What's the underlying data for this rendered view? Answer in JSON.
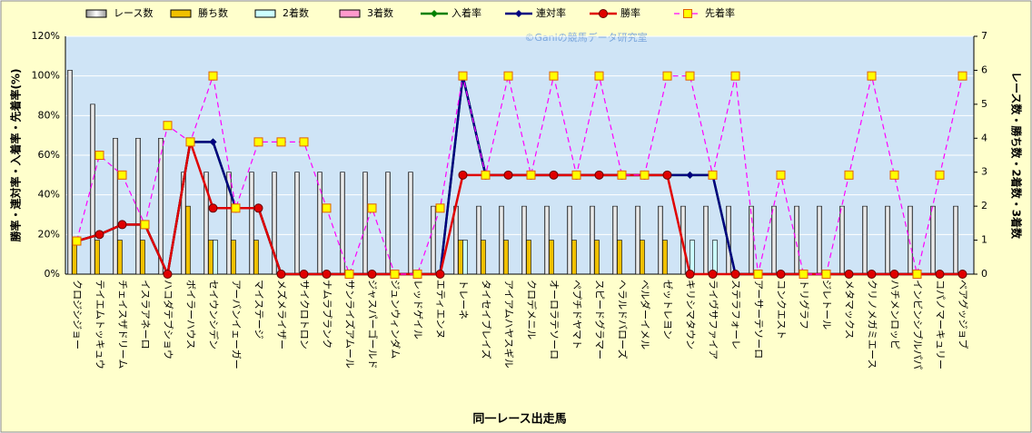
{
  "chart_data": {
    "type": "bar",
    "watermark": "©Ganiの競馬データ研究室",
    "x_label": "同一レース出走馬",
    "y_label": "勝率・連対率・入着率・先着率(%)",
    "y2_label": "レース数・勝ち数・2着数・3着数",
    "categories": [
      "クロジシジョー",
      "テイエムトッキュウ",
      "チェイスザドリーム",
      "イスラアネーロ",
      "ハコダテブショウ",
      "ボイラーハウス",
      "セイウンシデン",
      "アーバンイェーガー",
      "マイステージ",
      "メズメライザー",
      "サイクロトロン",
      "ナムラブランク",
      "サンライズアムール",
      "ジャスパーゴールド",
      "ジュンウィンダム",
      "レッドゲイル",
      "エティエンヌ",
      "トレーネ",
      "タイセイブレイズ",
      "アイアムハヤスギル",
      "クロデメニル",
      "オーロラテソーロ",
      "ペプチドヤマト",
      "スピードグラマー",
      "ヘラルドバローズ",
      "ベルダーイメル",
      "ゼットレヨン",
      "キリシマタウン",
      "ライヴサファイア",
      "ステラフォーレ",
      "アーサーテソーロ",
      "コンクエスト",
      "トリグラフ",
      "ジレトール",
      "メタマックス",
      "クリノメガミエース",
      "ハチメンロッピ",
      "インビンシブルパパ",
      "コパノマーキュリー",
      "ベアグッジョブ"
    ],
    "ylim": [
      0,
      120
    ],
    "yticks": [
      {
        "value": 0,
        "label": "0%"
      },
      {
        "value": 20,
        "label": "20%"
      },
      {
        "value": 40,
        "label": "40%"
      },
      {
        "value": 60,
        "label": "60%"
      },
      {
        "value": 80,
        "label": "80%"
      },
      {
        "value": 100,
        "label": "100%"
      },
      {
        "value": 120,
        "label": "120%"
      }
    ],
    "y2lim": [
      0,
      7
    ],
    "y2ticks": [
      0,
      1,
      2,
      3,
      4,
      5,
      6,
      7
    ],
    "grid": true,
    "series": [
      {
        "name": "レース数",
        "type": "bar",
        "axis": "y2",
        "color": "#ffffff",
        "values": [
          6,
          5,
          4,
          4,
          4,
          3,
          3,
          3,
          3,
          3,
          3,
          3,
          3,
          3,
          3,
          3,
          2,
          2,
          2,
          2,
          2,
          2,
          2,
          2,
          2,
          2,
          2,
          2,
          2,
          2,
          2,
          2,
          2,
          2,
          2,
          2,
          2,
          2,
          2,
          2
        ]
      },
      {
        "name": "勝ち数",
        "type": "bar",
        "axis": "y2",
        "color": "#f0c000",
        "values": [
          1,
          1,
          1,
          1,
          0,
          2,
          1,
          1,
          1,
          0,
          0,
          0,
          0,
          0,
          0,
          0,
          0,
          1,
          1,
          1,
          1,
          1,
          1,
          1,
          1,
          1,
          1,
          0,
          0,
          0,
          0,
          0,
          0,
          0,
          0,
          0,
          0,
          0,
          0,
          0
        ]
      },
      {
        "name": "2着数",
        "type": "bar",
        "axis": "y2",
        "color": "#ccffff",
        "values": [
          0,
          0,
          0,
          0,
          0,
          0,
          1,
          0,
          0,
          0,
          0,
          0,
          0,
          0,
          0,
          0,
          0,
          1,
          0,
          0,
          0,
          0,
          0,
          0,
          0,
          0,
          0,
          1,
          1,
          0,
          0,
          0,
          0,
          0,
          0,
          0,
          0,
          0,
          0,
          0
        ]
      },
      {
        "name": "3着数",
        "type": "bar",
        "axis": "y2",
        "color": "#ff99cc",
        "values": [
          0,
          0,
          0,
          0,
          0,
          0,
          0,
          0,
          0,
          0,
          0,
          0,
          0,
          0,
          0,
          0,
          0,
          0,
          0,
          0,
          0,
          0,
          0,
          0,
          0,
          0,
          0,
          0,
          0,
          0,
          0,
          0,
          0,
          0,
          0,
          0,
          0,
          0,
          0,
          0
        ]
      },
      {
        "name": "入着率",
        "type": "line",
        "color": "#008000",
        "marker": "diamond",
        "dashed": false,
        "values": [
          16.7,
          20,
          25,
          25,
          0,
          66.7,
          66.7,
          33.3,
          33.3,
          0,
          0,
          0,
          0,
          0,
          0,
          0,
          0,
          100,
          50,
          50,
          50,
          50,
          50,
          50,
          50,
          50,
          50,
          50,
          50,
          0,
          0,
          0,
          0,
          0,
          0,
          0,
          0,
          0,
          0,
          0
        ]
      },
      {
        "name": "連対率",
        "type": "line",
        "color": "#000080",
        "marker": "diamond",
        "dashed": false,
        "values": [
          16.7,
          20,
          25,
          25,
          0,
          66.7,
          66.7,
          33.3,
          33.3,
          0,
          0,
          0,
          0,
          0,
          0,
          0,
          0,
          100,
          50,
          50,
          50,
          50,
          50,
          50,
          50,
          50,
          50,
          50,
          50,
          0,
          0,
          0,
          0,
          0,
          0,
          0,
          0,
          0,
          0,
          0
        ]
      },
      {
        "name": "勝率",
        "type": "line",
        "color": "#e00000",
        "marker": "circle",
        "dashed": false,
        "values": [
          16.7,
          20,
          25,
          25,
          0,
          66.7,
          33.3,
          33.3,
          33.3,
          0,
          0,
          0,
          0,
          0,
          0,
          0,
          0,
          50,
          50,
          50,
          50,
          50,
          50,
          50,
          50,
          50,
          50,
          0,
          0,
          0,
          0,
          0,
          0,
          0,
          0,
          0,
          0,
          0,
          0,
          0
        ]
      },
      {
        "name": "先着率",
        "type": "line",
        "color": "#ff00ff",
        "marker": "square",
        "dashed": true,
        "values": [
          16.7,
          60,
          50,
          25,
          75,
          66.7,
          100,
          33.3,
          66.7,
          66.7,
          66.7,
          33.3,
          0,
          33.3,
          0,
          0,
          33.3,
          100,
          50,
          100,
          50,
          100,
          50,
          100,
          50,
          50,
          100,
          100,
          50,
          100,
          0,
          50,
          0,
          0,
          50,
          100,
          50,
          0,
          50,
          100
        ]
      }
    ]
  }
}
